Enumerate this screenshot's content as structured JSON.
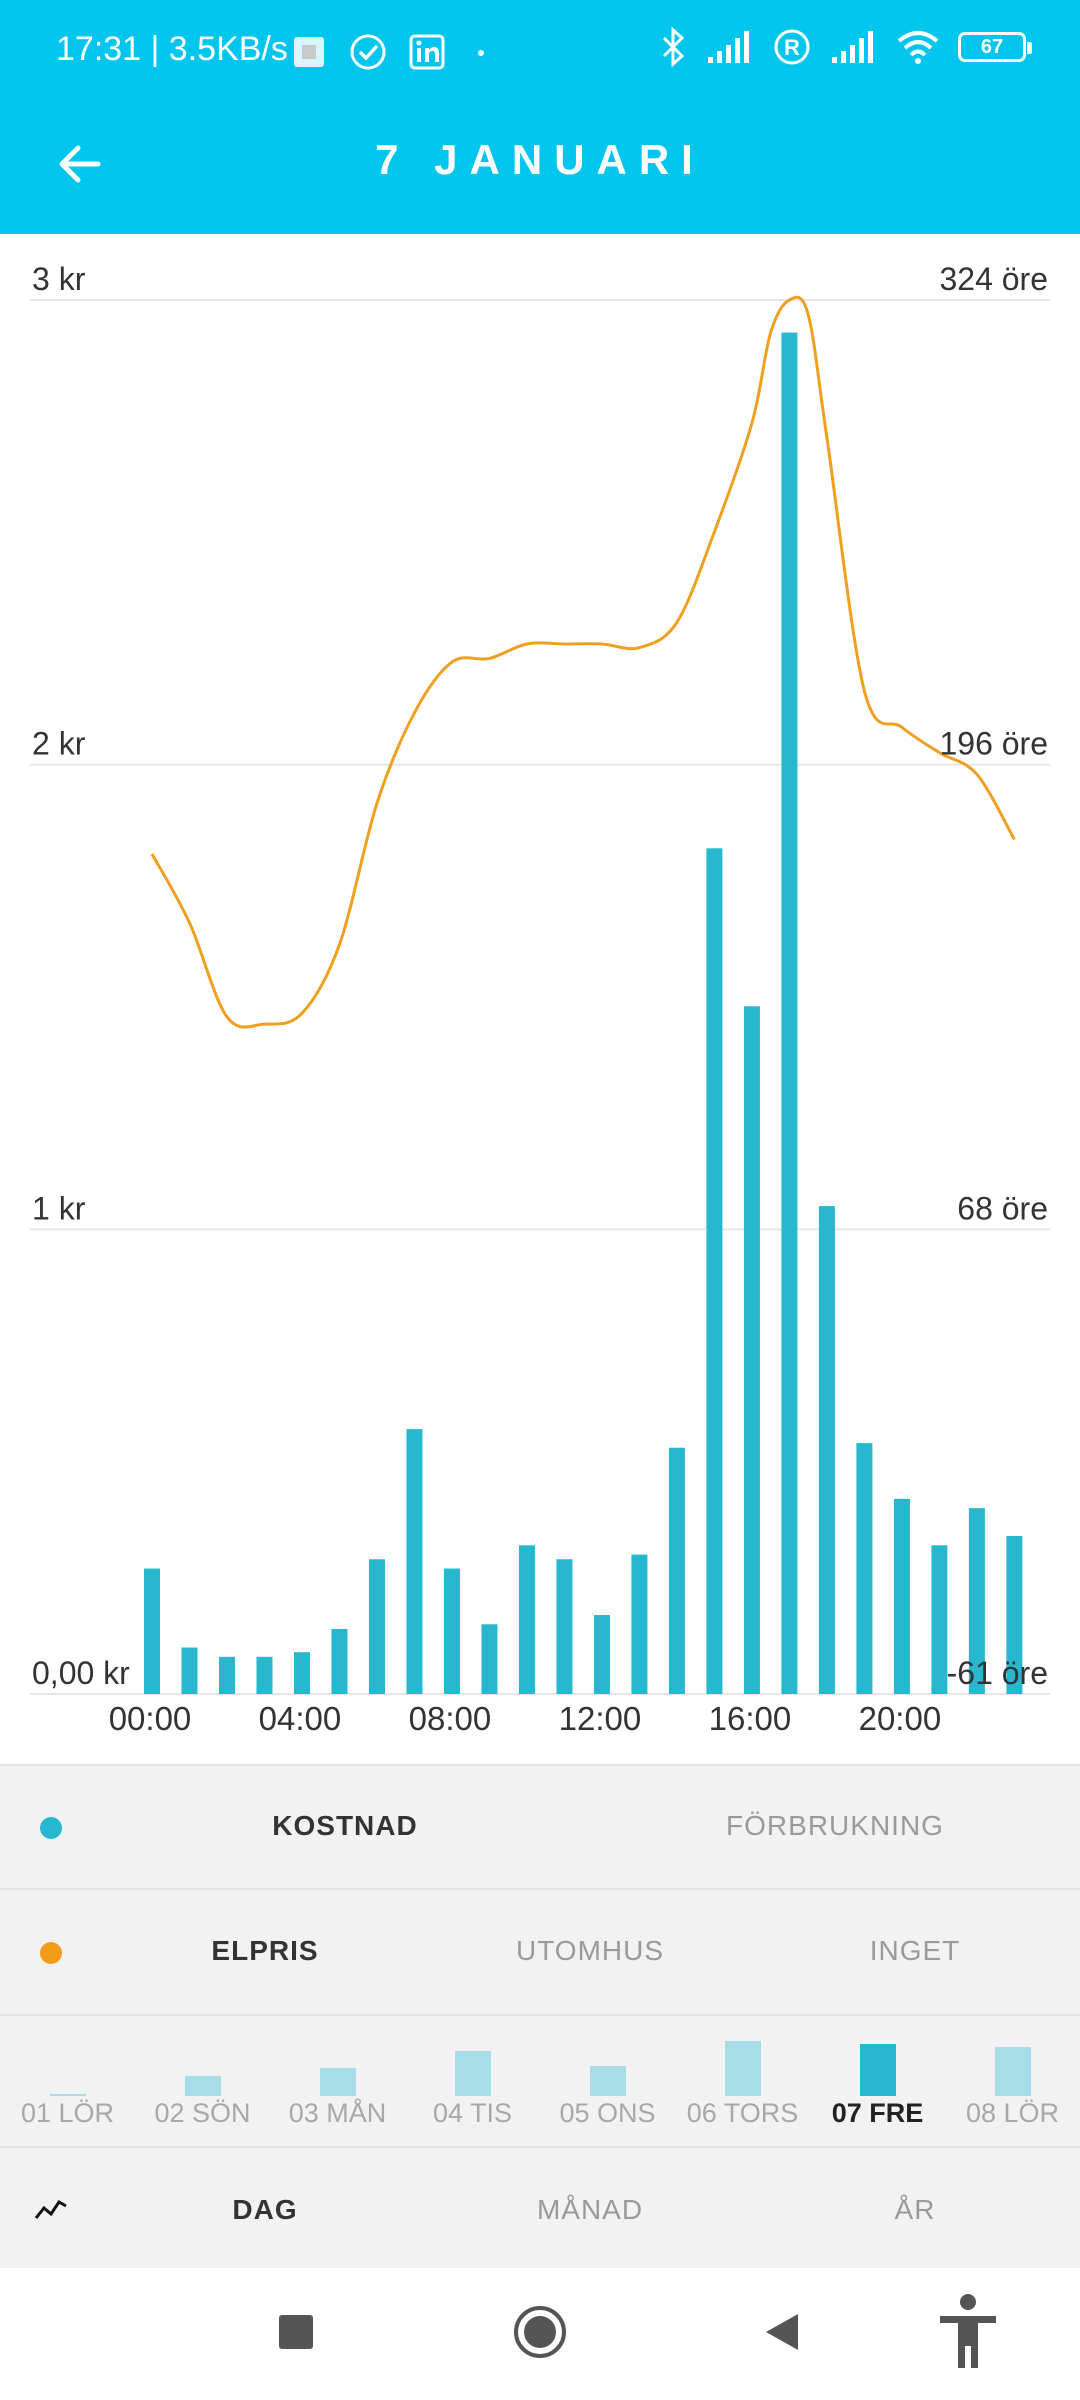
{
  "status_bar": {
    "time": "17:31 | 3.5KB/s",
    "battery": "67",
    "icons": [
      "sim-icon",
      "check-circle-icon",
      "linkedin-icon",
      "dot-icon",
      "bluetooth-icon",
      "signal-icon",
      "roaming-r-icon",
      "signal-icon",
      "wifi-icon",
      "battery-icon"
    ]
  },
  "header": {
    "title": "7 JANUARI",
    "back_icon": "arrow-left-icon"
  },
  "colors": {
    "accent": "#00c5ec",
    "bar": "#27b8cf",
    "line": "#f0a020"
  },
  "chart_data": {
    "type": "bar",
    "x_tick_labels": [
      "00:00",
      "04:00",
      "08:00",
      "12:00",
      "16:00",
      "20:00"
    ],
    "y_left": {
      "ticks": [
        "3 kr",
        "2 kr",
        "1 kr",
        "0,00 kr"
      ],
      "ylim": [
        0,
        3
      ]
    },
    "y_right": {
      "ticks": [
        "324 öre",
        "196 öre",
        "68 öre",
        "-61 öre"
      ],
      "ylim": [
        -61,
        324
      ]
    },
    "grid": true,
    "series": [
      {
        "type": "bar",
        "axis": "left",
        "hours": [
          0,
          1,
          2,
          3,
          4,
          5,
          6,
          7,
          8,
          9,
          10,
          11,
          12,
          13,
          14,
          15,
          16,
          17,
          18,
          19,
          20,
          21,
          22,
          23
        ],
        "values": [
          0.27,
          0.1,
          0.08,
          0.08,
          0.09,
          0.14,
          0.29,
          0.57,
          0.27,
          0.15,
          0.32,
          0.29,
          0.17,
          0.3,
          0.53,
          1.82,
          1.48,
          2.93,
          1.05,
          0.54,
          0.42,
          0.32,
          0.4,
          0.34
        ]
      },
      {
        "type": "line",
        "axis": "right",
        "hours": [
          0,
          1,
          2,
          3,
          4,
          5,
          6,
          7,
          8,
          9,
          10,
          11,
          12,
          13,
          14,
          15,
          16,
          16.5,
          17,
          17.5,
          18,
          19,
          20,
          21,
          22,
          23
        ],
        "values": [
          171,
          152,
          126,
          124,
          127,
          146,
          185,
          210,
          224,
          225,
          229,
          229,
          229,
          228,
          235,
          260,
          290,
          315,
          324,
          320,
          286,
          216,
          206,
          199,
          193,
          175
        ]
      }
    ]
  },
  "series_toggle": {
    "items": [
      "KOSTNAD",
      "FÖRBRUKNING"
    ],
    "selected": 0
  },
  "overlay_toggle": {
    "items": [
      "ELPRIS",
      "UTOMHUS",
      "INGET"
    ],
    "selected": 0
  },
  "days": {
    "items": [
      {
        "label": "01 LÖR",
        "value": 0.01
      },
      {
        "label": "02 SÖN",
        "value": 0.28
      },
      {
        "label": "03 MÅN",
        "value": 0.4
      },
      {
        "label": "04 TIS",
        "value": 0.65
      },
      {
        "label": "05 ONS",
        "value": 0.43
      },
      {
        "label": "06 TORS",
        "value": 0.78
      },
      {
        "label": "07 FRE",
        "value": 0.75
      },
      {
        "label": "08 LÖR",
        "value": 0.7
      }
    ],
    "selected": 6
  },
  "period_tabs": {
    "items": [
      "DAG",
      "MÅNAD",
      "ÅR"
    ],
    "selected": 0,
    "icon": "trend-line-icon"
  },
  "nav": [
    "recents-square-icon",
    "home-circle-icon",
    "back-triangle-icon",
    "accessibility-icon"
  ]
}
